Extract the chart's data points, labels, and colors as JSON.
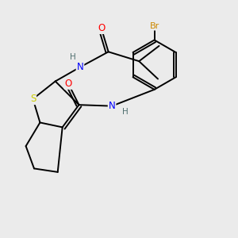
{
  "background_color": "#ebebeb",
  "bond_color": "#000000",
  "atom_colors": {
    "O": "#ff0000",
    "N": "#0000ff",
    "S": "#cccc00",
    "Br": "#cc8800",
    "H": "#507070",
    "C": "#000000"
  },
  "figsize": [
    3.0,
    3.0
  ],
  "dpi": 100
}
